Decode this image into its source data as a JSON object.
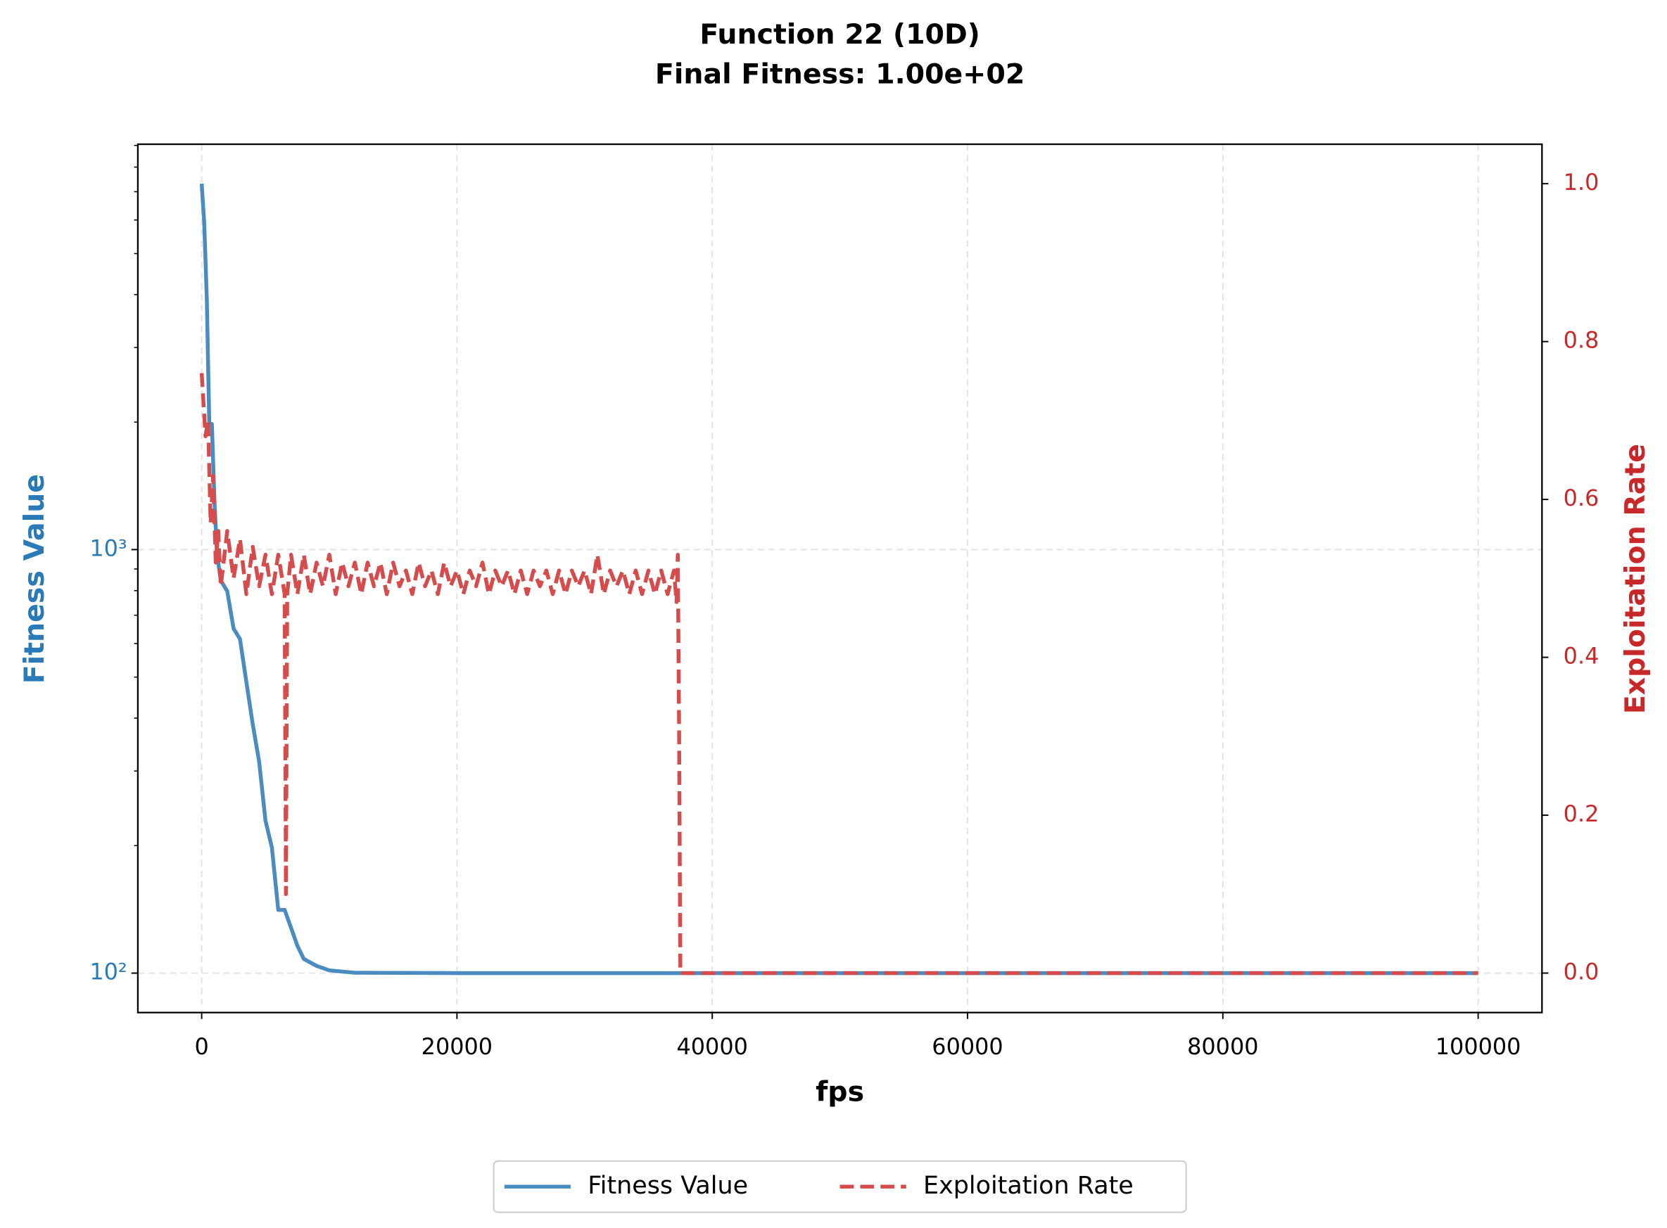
{
  "chart_data": {
    "type": "line",
    "title": "Function 22 (10D)",
    "subtitle": "Final Fitness: 1.00e+02",
    "x_label": "fps",
    "y_label": "Fitness Value",
    "y2_label": "Exploitation Rate",
    "xlim": [
      -5000,
      105000
    ],
    "xticks": [
      0,
      20000,
      40000,
      60000,
      80000,
      100000
    ],
    "ylim": [
      80.7,
      9060
    ],
    "y_log": true,
    "yticks": [
      {
        "value": 100,
        "label": "10²"
      },
      {
        "value": 1000,
        "label": "10³"
      }
    ],
    "yminorticks": [
      200,
      300,
      400,
      500,
      600,
      700,
      800,
      900,
      2000,
      3000,
      4000,
      5000,
      6000,
      7000,
      8000,
      9000
    ],
    "y2lim": [
      -0.05,
      1.05
    ],
    "y2ticks": [
      {
        "value": 0,
        "label": "0.0"
      },
      {
        "value": 0.2,
        "label": "0.2"
      },
      {
        "value": 0.4,
        "label": "0.4"
      },
      {
        "value": 0.6,
        "label": "0.6"
      },
      {
        "value": 0.8,
        "label": "0.8"
      },
      {
        "value": 1,
        "label": "1.0"
      }
    ],
    "grid": true,
    "legend": "bottom",
    "series": [
      {
        "name": "Fitness Value",
        "color": "#4a8bc0",
        "dash": false,
        "x": [
          0,
          200,
          400,
          600,
          800,
          1000,
          1200,
          1500,
          2000,
          2500,
          3000,
          3500,
          4000,
          4500,
          5000,
          5500,
          6000,
          6500,
          7000,
          7500,
          8000,
          9000,
          10000,
          12000,
          20000,
          40000,
          60000,
          80000,
          100000
        ],
        "values": [
          7310,
          5900,
          3930,
          1960,
          1980,
          1306,
          977,
          845,
          798,
          651,
          615,
          487,
          387,
          316,
          229,
          198,
          141,
          141,
          128,
          116,
          108,
          104,
          101.5,
          100.2,
          100,
          100,
          100,
          100,
          100
        ]
      },
      {
        "name": "Exploitation Rate",
        "color": "#d64c4c",
        "dash": true,
        "axis": "y2",
        "x": [
          0,
          300,
          500,
          700,
          900,
          1100,
          1300,
          1500,
          2000,
          2500,
          3000,
          3500,
          4000,
          4500,
          5000,
          5500,
          6000,
          6500,
          6600,
          6700,
          7000,
          7500,
          8000,
          8500,
          9000,
          9500,
          10000,
          10500,
          11000,
          11500,
          12000,
          12500,
          13000,
          13500,
          14000,
          14500,
          15000,
          15500,
          16000,
          16500,
          17000,
          17500,
          18000,
          18500,
          19000,
          19500,
          20000,
          20500,
          21000,
          21500,
          22000,
          22500,
          23000,
          23500,
          24000,
          24500,
          25000,
          25500,
          26000,
          26500,
          27000,
          27500,
          28000,
          28500,
          29000,
          29500,
          30000,
          30500,
          31000,
          31500,
          32000,
          32500,
          33000,
          33500,
          34000,
          34500,
          35000,
          35500,
          36000,
          36500,
          37000,
          37200,
          37300,
          37400,
          37500,
          100000
        ],
        "values": [
          0.76,
          0.68,
          0.7,
          0.57,
          0.63,
          0.52,
          0.56,
          0.49,
          0.56,
          0.5,
          0.55,
          0.48,
          0.54,
          0.49,
          0.53,
          0.48,
          0.53,
          0.48,
          0.1,
          0.48,
          0.53,
          0.48,
          0.53,
          0.48,
          0.52,
          0.49,
          0.53,
          0.48,
          0.52,
          0.49,
          0.52,
          0.48,
          0.52,
          0.49,
          0.52,
          0.48,
          0.52,
          0.49,
          0.51,
          0.48,
          0.52,
          0.49,
          0.51,
          0.48,
          0.52,
          0.49,
          0.51,
          0.48,
          0.51,
          0.49,
          0.52,
          0.48,
          0.51,
          0.49,
          0.51,
          0.48,
          0.51,
          0.48,
          0.51,
          0.49,
          0.51,
          0.48,
          0.51,
          0.48,
          0.51,
          0.49,
          0.51,
          0.48,
          0.53,
          0.48,
          0.51,
          0.49,
          0.51,
          0.48,
          0.51,
          0.48,
          0.51,
          0.48,
          0.51,
          0.48,
          0.51,
          0.47,
          0.53,
          0.31,
          0,
          0
        ]
      }
    ]
  }
}
